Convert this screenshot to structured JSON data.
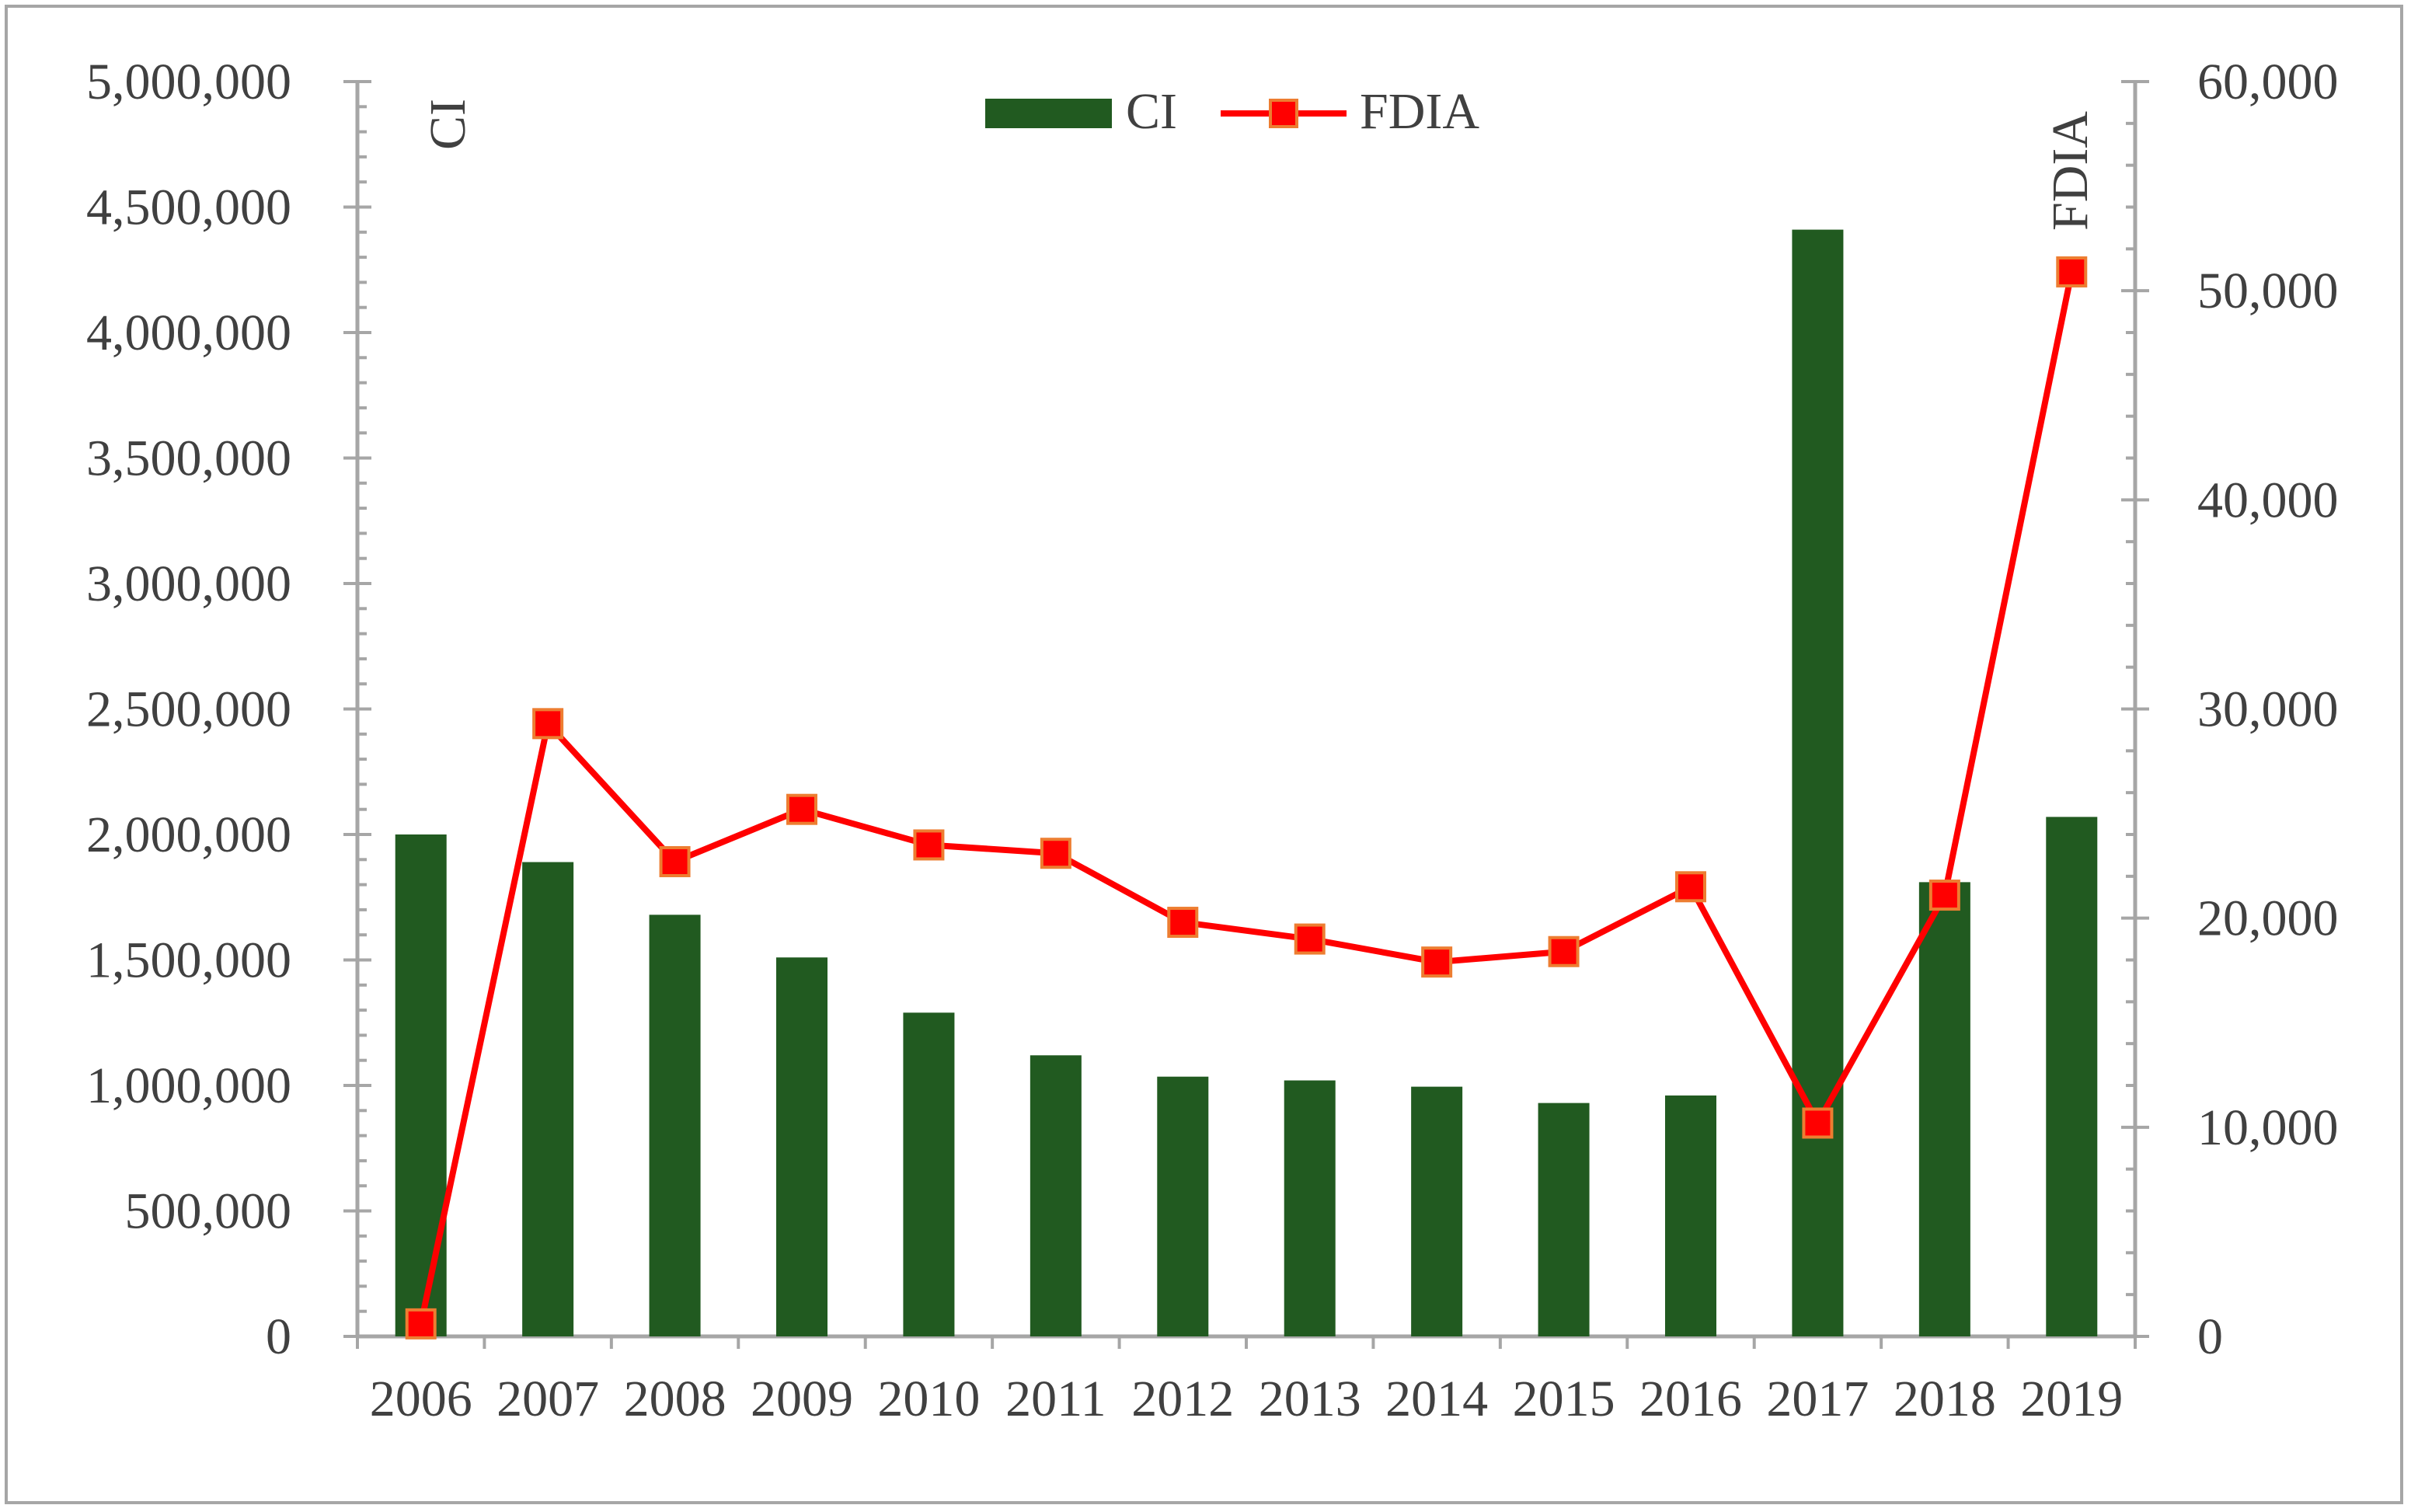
{
  "chart_data": {
    "type": "bar+line",
    "categories": [
      "2006",
      "2007",
      "2008",
      "2009",
      "2010",
      "2011",
      "2012",
      "2013",
      "2014",
      "2015",
      "2016",
      "2017",
      "2018",
      "2019"
    ],
    "series": [
      {
        "name": "CI",
        "type": "bar",
        "axis": "left",
        "color": "#215a20",
        "values": [
          2000000,
          1890000,
          1680000,
          1510000,
          1290000,
          1120000,
          1035000,
          1020000,
          995000,
          930000,
          960000,
          4410000,
          1810000,
          2070000
        ]
      },
      {
        "name": "FDIA",
        "type": "line",
        "axis": "right",
        "color": "#ff0000",
        "marker_color": "#ff0000",
        "marker_edge": "#ed7d31",
        "values": [
          600,
          29300,
          22700,
          25200,
          23500,
          23100,
          19800,
          19000,
          17900,
          18400,
          21500,
          10200,
          21100,
          50900
        ]
      }
    ],
    "left_axis": {
      "title": "CI",
      "ylim": [
        0,
        5000000
      ],
      "ticks": [
        "0",
        "500,000",
        "1,000,000",
        "1,500,000",
        "2,000,000",
        "2,500,000",
        "3,000,000",
        "3,500,000",
        "4,000,000",
        "4,500,000",
        "5,000,000"
      ]
    },
    "right_axis": {
      "title": "FDIA",
      "ylim": [
        0,
        60000
      ],
      "ticks": [
        "0",
        "10,000",
        "20,000",
        "30,000",
        "40,000",
        "50,000",
        "60,000"
      ]
    },
    "legend": {
      "position": "top-center",
      "entries": [
        "CI",
        "FDIA"
      ]
    },
    "grid": false
  }
}
